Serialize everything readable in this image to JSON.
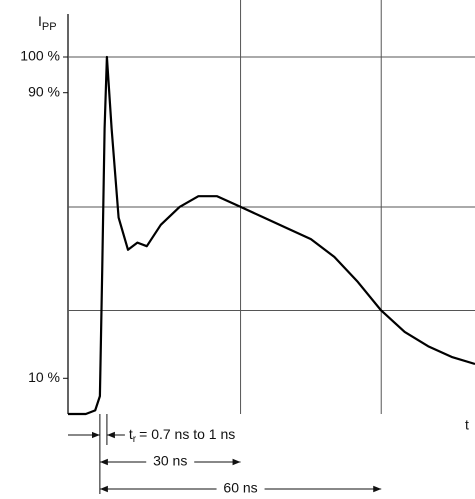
{
  "chart_data": {
    "type": "line",
    "y_label": {
      "text": "I",
      "sub": "PP"
    },
    "x_label": "t",
    "xlim": [
      -6.8,
      80
    ],
    "ylim": [
      0,
      100
    ],
    "yticks": [
      {
        "value": 100,
        "label": "100 %"
      },
      {
        "value": 90,
        "label": "90 %"
      },
      {
        "value": 10,
        "label": "10 %"
      }
    ],
    "ygrid": [
      100,
      58,
      29
    ],
    "xgrid": [
      30,
      60
    ],
    "series": [
      {
        "color": "#000000",
        "x": [
          -6.8,
          -3,
          -1,
          0,
          0.5,
          1,
          1.5,
          2.5,
          4,
          6,
          8,
          10,
          13,
          17,
          21,
          25,
          30,
          35,
          40,
          45,
          50,
          55,
          60,
          65,
          70,
          75,
          80
        ],
        "values": [
          0,
          0,
          1,
          5,
          40,
          80,
          100,
          80,
          55,
          46,
          48,
          47,
          53,
          58,
          61,
          61,
          58,
          55,
          52,
          49,
          44,
          37,
          29,
          23,
          19,
          16,
          14
        ]
      }
    ],
    "rise_time": {
      "symbol": "t",
      "sub": "r",
      "text": "= 0.7 ns to 1 ns",
      "from": 0,
      "to": 1.5
    },
    "dimensions": [
      {
        "label": "30 ns",
        "from": 0,
        "to": 30
      },
      {
        "label": "60 ns",
        "from": 0,
        "to": 60
      }
    ]
  }
}
